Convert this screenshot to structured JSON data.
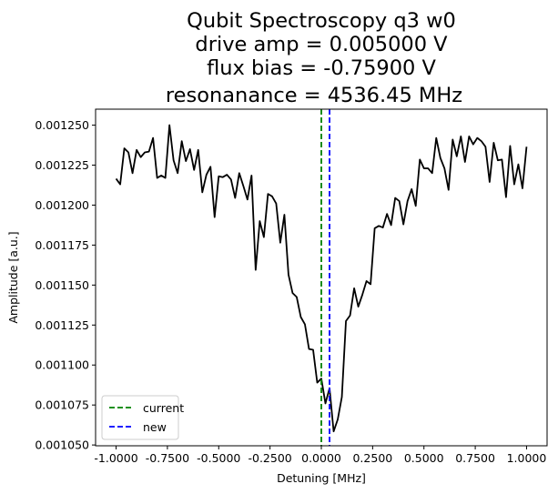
{
  "chart_data": {
    "type": "line",
    "title_lines": [
      "Qubit Spectroscopy q3 w0",
      "drive amp = 0.005000 V",
      "flux bias = -0.75900 V",
      "resonanance = 4536.45 MHz"
    ],
    "xlabel": "Detuning [MHz]",
    "ylabel": "Amplitude [a.u.]",
    "xlim": [
      -1.1,
      1.1
    ],
    "ylim": [
      0.0010495,
      0.00126
    ],
    "xticks": [
      -1.0,
      -0.75,
      -0.5,
      -0.25,
      0.0,
      0.25,
      0.5,
      0.75,
      1.0
    ],
    "xtick_labels": [
      "-1.0000",
      "-0.7500",
      "-0.5000",
      "-0.2500",
      "0.0000",
      "0.2500",
      "0.5000",
      "0.7500",
      "1.0000"
    ],
    "yticks": [
      0.00105,
      0.001075,
      0.0011,
      0.001125,
      0.00115,
      0.001175,
      0.0012,
      0.001225,
      0.00125
    ],
    "ytick_labels": [
      "0.001050",
      "0.001075",
      "0.001100",
      "0.001125",
      "0.001150",
      "0.001175",
      "0.001200",
      "0.001225",
      "0.001250"
    ],
    "grid": false,
    "legend_position": "lower-left",
    "series": [
      {
        "color": "#000000",
        "style": "solid",
        "x_start": -1.0,
        "x_step": 0.02,
        "y": [
          0.0012165,
          0.001213,
          0.0012355,
          0.001233,
          0.00122,
          0.0012345,
          0.00123,
          0.001233,
          0.0012335,
          0.001242,
          0.001217,
          0.0012185,
          0.001217,
          0.00125,
          0.001228,
          0.00122,
          0.00124,
          0.0012275,
          0.001235,
          0.001222,
          0.0012345,
          0.001208,
          0.001219,
          0.001224,
          0.0011925,
          0.001218,
          0.0012175,
          0.001219,
          0.001216,
          0.0012045,
          0.00122,
          0.001212,
          0.0012035,
          0.0012185,
          0.0011595,
          0.00119,
          0.00118,
          0.001207,
          0.0012055,
          0.001201,
          0.0011765,
          0.001194,
          0.0011565,
          0.001145,
          0.0011425,
          0.00113,
          0.0011255,
          0.00111,
          0.0011095,
          0.001089,
          0.0010915,
          0.001076,
          0.0010855,
          0.0010585,
          0.001066,
          0.00108,
          0.0011275,
          0.001131,
          0.001148,
          0.0011365,
          0.001144,
          0.0011525,
          0.0011505,
          0.0011855,
          0.001187,
          0.001186,
          0.0011945,
          0.0011875,
          0.0012045,
          0.0012025,
          0.001188,
          0.0012025,
          0.00121,
          0.0011995,
          0.0012285,
          0.001223,
          0.001223,
          0.00122,
          0.001242,
          0.0012295,
          0.001223,
          0.0012095,
          0.001241,
          0.0012305,
          0.001243,
          0.001227,
          0.001243,
          0.001238,
          0.001242,
          0.00124,
          0.0012365,
          0.0012145,
          0.001239,
          0.001228,
          0.0012285,
          0.001205,
          0.001237,
          0.001213,
          0.0012255,
          0.0012105,
          0.0012365
        ]
      }
    ],
    "vlines": [
      {
        "name": "current",
        "x": 0.0,
        "color": "#008000",
        "style": "dashed"
      },
      {
        "name": "new",
        "x": 0.04,
        "color": "#0000ff",
        "style": "dashed"
      }
    ]
  }
}
